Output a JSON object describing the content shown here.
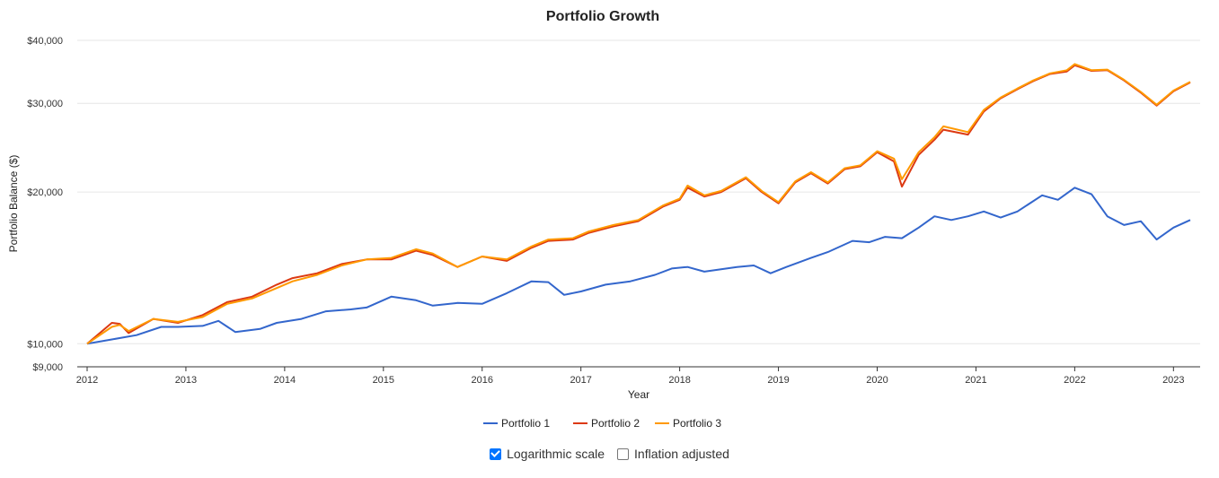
{
  "chart_data": {
    "type": "line",
    "title": "Portfolio Growth",
    "xlabel": "Year",
    "ylabel": "Portfolio Balance ($)",
    "yscale": "log",
    "ylim": [
      9000,
      40000
    ],
    "xlim": [
      2012.0,
      2023.17
    ],
    "yticks": [
      {
        "value": 9000,
        "label": "$9,000"
      },
      {
        "value": 10000,
        "label": "$10,000"
      },
      {
        "value": 20000,
        "label": "$20,000"
      },
      {
        "value": 30000,
        "label": "$30,000"
      },
      {
        "value": 40000,
        "label": "$40,000"
      }
    ],
    "xticks": [
      "2012",
      "2013",
      "2014",
      "2015",
      "2016",
      "2017",
      "2018",
      "2019",
      "2020",
      "2021",
      "2022",
      "2023"
    ],
    "legend_position": "bottom",
    "series": [
      {
        "name": "Portfolio 1",
        "color": "#3366cc",
        "points": [
          [
            2012.0,
            10000
          ],
          [
            2012.25,
            10200
          ],
          [
            2012.5,
            10400
          ],
          [
            2012.75,
            10800
          ],
          [
            2012.92,
            10800
          ],
          [
            2013.17,
            10850
          ],
          [
            2013.33,
            11100
          ],
          [
            2013.5,
            10550
          ],
          [
            2013.75,
            10700
          ],
          [
            2013.92,
            11000
          ],
          [
            2014.17,
            11200
          ],
          [
            2014.42,
            11600
          ],
          [
            2014.67,
            11700
          ],
          [
            2014.83,
            11800
          ],
          [
            2015.08,
            12400
          ],
          [
            2015.33,
            12200
          ],
          [
            2015.5,
            11900
          ],
          [
            2015.75,
            12050
          ],
          [
            2016.0,
            12000
          ],
          [
            2016.25,
            12600
          ],
          [
            2016.5,
            13300
          ],
          [
            2016.67,
            13250
          ],
          [
            2016.83,
            12500
          ],
          [
            2017.0,
            12700
          ],
          [
            2017.25,
            13100
          ],
          [
            2017.5,
            13300
          ],
          [
            2017.75,
            13700
          ],
          [
            2017.92,
            14100
          ],
          [
            2018.08,
            14200
          ],
          [
            2018.25,
            13900
          ],
          [
            2018.58,
            14200
          ],
          [
            2018.75,
            14300
          ],
          [
            2018.92,
            13800
          ],
          [
            2019.08,
            14200
          ],
          [
            2019.33,
            14800
          ],
          [
            2019.5,
            15200
          ],
          [
            2019.75,
            16000
          ],
          [
            2019.92,
            15900
          ],
          [
            2020.08,
            16300
          ],
          [
            2020.25,
            16200
          ],
          [
            2020.42,
            17000
          ],
          [
            2020.58,
            17900
          ],
          [
            2020.75,
            17600
          ],
          [
            2020.92,
            17900
          ],
          [
            2021.08,
            18300
          ],
          [
            2021.25,
            17800
          ],
          [
            2021.42,
            18300
          ],
          [
            2021.67,
            19700
          ],
          [
            2021.83,
            19300
          ],
          [
            2022.0,
            20400
          ],
          [
            2022.17,
            19800
          ],
          [
            2022.33,
            17900
          ],
          [
            2022.5,
            17200
          ],
          [
            2022.67,
            17500
          ],
          [
            2022.83,
            16100
          ],
          [
            2023.0,
            17000
          ],
          [
            2023.17,
            17600
          ]
        ]
      },
      {
        "name": "Portfolio 2",
        "color": "#dc3912",
        "points": [
          [
            2012.0,
            10000
          ],
          [
            2012.25,
            11000
          ],
          [
            2012.33,
            10950
          ],
          [
            2012.42,
            10500
          ],
          [
            2012.67,
            11200
          ],
          [
            2012.92,
            11000
          ],
          [
            2013.17,
            11400
          ],
          [
            2013.42,
            12100
          ],
          [
            2013.67,
            12400
          ],
          [
            2013.92,
            13100
          ],
          [
            2014.08,
            13500
          ],
          [
            2014.33,
            13800
          ],
          [
            2014.58,
            14400
          ],
          [
            2014.83,
            14700
          ],
          [
            2015.08,
            14700
          ],
          [
            2015.33,
            15300
          ],
          [
            2015.5,
            15000
          ],
          [
            2015.75,
            14200
          ],
          [
            2016.0,
            14900
          ],
          [
            2016.25,
            14600
          ],
          [
            2016.5,
            15500
          ],
          [
            2016.67,
            16000
          ],
          [
            2016.92,
            16100
          ],
          [
            2017.08,
            16600
          ],
          [
            2017.33,
            17100
          ],
          [
            2017.58,
            17500
          ],
          [
            2017.83,
            18700
          ],
          [
            2018.0,
            19300
          ],
          [
            2018.08,
            20400
          ],
          [
            2018.25,
            19600
          ],
          [
            2018.42,
            20000
          ],
          [
            2018.67,
            21300
          ],
          [
            2018.83,
            20000
          ],
          [
            2019.0,
            19000
          ],
          [
            2019.17,
            20900
          ],
          [
            2019.33,
            21800
          ],
          [
            2019.5,
            20800
          ],
          [
            2019.67,
            22200
          ],
          [
            2019.83,
            22500
          ],
          [
            2020.0,
            24000
          ],
          [
            2020.17,
            23000
          ],
          [
            2020.25,
            20500
          ],
          [
            2020.42,
            23700
          ],
          [
            2020.58,
            25400
          ],
          [
            2020.67,
            26600
          ],
          [
            2020.92,
            26000
          ],
          [
            2021.08,
            28900
          ],
          [
            2021.25,
            30700
          ],
          [
            2021.42,
            32000
          ],
          [
            2021.58,
            33200
          ],
          [
            2021.75,
            34300
          ],
          [
            2021.92,
            34700
          ],
          [
            2022.0,
            35700
          ],
          [
            2022.17,
            34800
          ],
          [
            2022.33,
            34900
          ],
          [
            2022.5,
            33300
          ],
          [
            2022.67,
            31500
          ],
          [
            2022.83,
            29700
          ],
          [
            2023.0,
            31700
          ],
          [
            2023.17,
            33000
          ]
        ]
      },
      {
        "name": "Portfolio 3",
        "color": "#ff9900",
        "points": [
          [
            2012.0,
            10000
          ],
          [
            2012.25,
            10800
          ],
          [
            2012.33,
            10900
          ],
          [
            2012.42,
            10600
          ],
          [
            2012.67,
            11200
          ],
          [
            2012.92,
            11050
          ],
          [
            2013.17,
            11300
          ],
          [
            2013.42,
            12000
          ],
          [
            2013.67,
            12300
          ],
          [
            2013.92,
            12900
          ],
          [
            2014.08,
            13300
          ],
          [
            2014.33,
            13700
          ],
          [
            2014.58,
            14300
          ],
          [
            2014.83,
            14700
          ],
          [
            2015.08,
            14800
          ],
          [
            2015.33,
            15400
          ],
          [
            2015.5,
            15100
          ],
          [
            2015.75,
            14200
          ],
          [
            2016.0,
            14900
          ],
          [
            2016.25,
            14700
          ],
          [
            2016.5,
            15600
          ],
          [
            2016.67,
            16100
          ],
          [
            2016.92,
            16200
          ],
          [
            2017.08,
            16700
          ],
          [
            2017.33,
            17200
          ],
          [
            2017.58,
            17600
          ],
          [
            2017.83,
            18800
          ],
          [
            2018.0,
            19400
          ],
          [
            2018.08,
            20600
          ],
          [
            2018.25,
            19700
          ],
          [
            2018.42,
            20100
          ],
          [
            2018.67,
            21400
          ],
          [
            2018.83,
            20100
          ],
          [
            2019.0,
            19100
          ],
          [
            2019.17,
            21000
          ],
          [
            2019.33,
            21900
          ],
          [
            2019.5,
            20900
          ],
          [
            2019.67,
            22300
          ],
          [
            2019.83,
            22600
          ],
          [
            2020.0,
            24100
          ],
          [
            2020.17,
            23300
          ],
          [
            2020.25,
            21200
          ],
          [
            2020.42,
            24000
          ],
          [
            2020.58,
            25700
          ],
          [
            2020.67,
            27000
          ],
          [
            2020.92,
            26300
          ],
          [
            2021.08,
            29100
          ],
          [
            2021.25,
            30800
          ],
          [
            2021.42,
            32100
          ],
          [
            2021.58,
            33300
          ],
          [
            2021.75,
            34400
          ],
          [
            2021.92,
            34900
          ],
          [
            2022.0,
            35900
          ],
          [
            2022.17,
            34900
          ],
          [
            2022.33,
            35000
          ],
          [
            2022.5,
            33400
          ],
          [
            2022.67,
            31600
          ],
          [
            2022.83,
            29800
          ],
          [
            2023.0,
            31800
          ],
          [
            2023.17,
            33100
          ]
        ]
      }
    ]
  },
  "controls": {
    "log_label": "Logarithmic scale",
    "log_checked": true,
    "inflation_label": "Inflation adjusted",
    "inflation_checked": false
  }
}
